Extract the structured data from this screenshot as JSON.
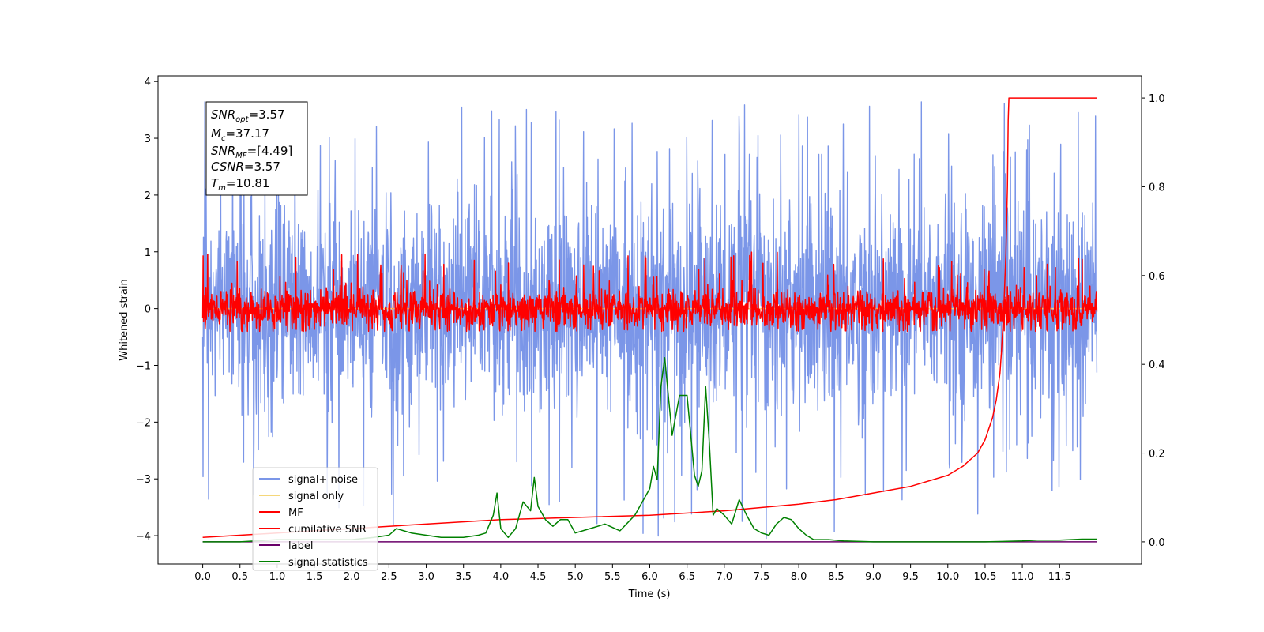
{
  "chart_data": {
    "type": "line",
    "xlabel": "Time (s)",
    "ylabel": "Whitened strain",
    "xlim": [
      -0.6,
      12.6
    ],
    "ylim_left": [
      -4.5,
      4.1
    ],
    "ylim_right": [
      -0.05,
      1.05
    ],
    "x_ticks": [
      0.0,
      0.5,
      1.0,
      1.5,
      2.0,
      2.5,
      3.0,
      3.5,
      4.0,
      4.5,
      5.0,
      5.5,
      6.0,
      6.5,
      7.0,
      7.5,
      8.0,
      8.5,
      9.0,
      9.5,
      10.0,
      10.5,
      11.0,
      11.5
    ],
    "x_tick_labels": [
      "0.0",
      "0.5",
      "1.0",
      "1.5",
      "2.0",
      "2.5",
      "3.0",
      "3.5",
      "4.0",
      "4.5",
      "5.0",
      "5.5",
      "6.0",
      "6.5",
      "7.0",
      "7.5",
      "8.0",
      "8.5",
      "9.0",
      "9.5",
      "10.0",
      "10.5",
      "11.0",
      "11.5"
    ],
    "y_left_ticks": [
      4,
      3,
      2,
      1,
      0,
      -1,
      -2,
      -3,
      -4
    ],
    "y_left_tick_labels": [
      "4",
      "3",
      "2",
      "1",
      "0",
      "−1",
      "−2",
      "−3",
      "−4"
    ],
    "y_right_ticks": [
      1.0,
      0.8,
      0.6,
      0.4,
      0.2,
      0.0
    ],
    "y_right_tick_labels": [
      "1.0",
      "0.8",
      "0.6",
      "0.4",
      "0.2",
      "0.0"
    ],
    "legend_position": "lower-left",
    "grid": false,
    "info_box": {
      "snr_opt_value": "3.57",
      "mc_value": "37.17",
      "snr_mf_value": "[4.49]",
      "csnr_value": "3.57",
      "tm_value": "10.81"
    },
    "series": [
      {
        "name": "signal+ noise",
        "axis": "left",
        "color": "#7b96e8",
        "kind": "noise",
        "x_range": [
          0.0,
          12.0
        ],
        "band_mean": 0.0,
        "band_typical_range": [
          -1.6,
          2.1
        ],
        "spike_range": [
          -4.1,
          3.7
        ]
      },
      {
        "name": "signal only",
        "axis": "left",
        "color": "#f5d77a",
        "kind": "flat",
        "x": [
          0.0,
          12.0
        ],
        "values": [
          0.0,
          0.0
        ]
      },
      {
        "name": "MF",
        "axis": "left",
        "color": "#ff0000",
        "kind": "noise",
        "x_range": [
          0.0,
          12.0
        ],
        "band_mean": 0.0,
        "band_typical_range": [
          -0.35,
          0.35
        ],
        "spike_range": [
          -0.4,
          1.0
        ]
      },
      {
        "name": "cumilative SNR",
        "axis": "right",
        "color": "#ff0000",
        "x": [
          0.0,
          1.0,
          2.0,
          3.0,
          4.0,
          5.0,
          6.0,
          7.0,
          8.0,
          8.5,
          9.0,
          9.5,
          10.0,
          10.2,
          10.4,
          10.5,
          10.6,
          10.65,
          10.7,
          10.72,
          10.75,
          10.78,
          10.8,
          10.81,
          10.82,
          12.0
        ],
        "values": [
          0.01,
          0.02,
          0.03,
          0.04,
          0.05,
          0.055,
          0.06,
          0.07,
          0.085,
          0.095,
          0.11,
          0.125,
          0.15,
          0.17,
          0.2,
          0.23,
          0.28,
          0.32,
          0.38,
          0.43,
          0.52,
          0.65,
          0.8,
          0.95,
          1.0,
          1.0
        ]
      },
      {
        "name": "label",
        "axis": "right",
        "color": "#6a006a",
        "x": [
          0.0,
          12.0
        ],
        "values": [
          0.0,
          0.0
        ]
      },
      {
        "name": "signal statistics",
        "axis": "right",
        "color": "#008000",
        "x": [
          0.0,
          0.5,
          1.0,
          1.5,
          2.0,
          2.3,
          2.5,
          2.6,
          2.8,
          3.0,
          3.2,
          3.5,
          3.7,
          3.8,
          3.9,
          3.95,
          4.0,
          4.1,
          4.2,
          4.3,
          4.4,
          4.45,
          4.5,
          4.6,
          4.7,
          4.8,
          4.9,
          5.0,
          5.2,
          5.4,
          5.6,
          5.8,
          6.0,
          6.05,
          6.1,
          6.15,
          6.2,
          6.3,
          6.4,
          6.5,
          6.6,
          6.65,
          6.7,
          6.75,
          6.8,
          6.85,
          6.9,
          7.0,
          7.1,
          7.2,
          7.3,
          7.4,
          7.5,
          7.6,
          7.7,
          7.8,
          7.9,
          8.0,
          8.1,
          8.2,
          8.4,
          8.6,
          9.0,
          9.5,
          10.0,
          10.5,
          11.0,
          11.2,
          11.5,
          11.8,
          12.0
        ],
        "values": [
          0.0,
          0.0,
          0.005,
          0.005,
          0.005,
          0.01,
          0.015,
          0.03,
          0.02,
          0.015,
          0.01,
          0.01,
          0.015,
          0.02,
          0.06,
          0.11,
          0.03,
          0.01,
          0.03,
          0.09,
          0.07,
          0.145,
          0.08,
          0.05,
          0.035,
          0.05,
          0.05,
          0.02,
          0.03,
          0.04,
          0.025,
          0.06,
          0.12,
          0.17,
          0.14,
          0.35,
          0.415,
          0.24,
          0.33,
          0.33,
          0.15,
          0.125,
          0.16,
          0.35,
          0.22,
          0.06,
          0.075,
          0.06,
          0.04,
          0.095,
          0.06,
          0.03,
          0.02,
          0.015,
          0.04,
          0.055,
          0.05,
          0.03,
          0.015,
          0.005,
          0.005,
          0.002,
          0.0,
          0.0,
          0.0,
          0.0,
          0.002,
          0.004,
          0.004,
          0.006,
          0.006
        ]
      }
    ]
  }
}
